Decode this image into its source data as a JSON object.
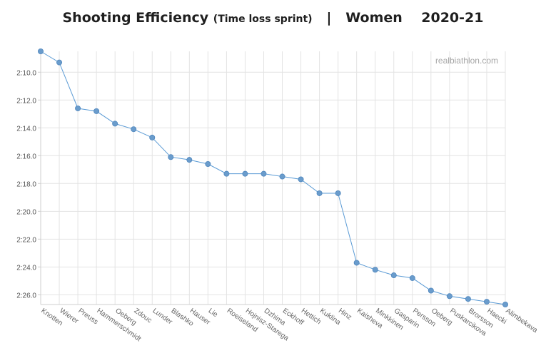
{
  "title_parts": {
    "main": "Shooting Efficiency",
    "sub": "(Time loss sprint)",
    "sep": "|",
    "group": "Women",
    "season": "2020-21"
  },
  "watermark": "realbiathlon.com",
  "chart_data": {
    "type": "line",
    "title": "Shooting Efficiency (Time loss sprint) | Women 2020-21",
    "xlabel": "",
    "ylabel": "",
    "y_unit": "seconds (m:ss.s)",
    "y_inverted": true,
    "ylim": [
      128.5,
      146.7
    ],
    "yticks": [
      130,
      132,
      134,
      136,
      138,
      140,
      142,
      144,
      146
    ],
    "ytick_labels": [
      "2:10.0",
      "2:12.0",
      "2:14.0",
      "2:16.0",
      "2:18.0",
      "2:20.0",
      "2:22.0",
      "2:24.0",
      "2:26.0"
    ],
    "grid": true,
    "line_color": "#5b9bd5",
    "marker_color": "#6a9ccc",
    "categories": [
      "Knotten",
      "Wierer",
      "Preuss",
      "Hammerschmidt",
      "Oeberg",
      "Zdouc",
      "Lunder",
      "Blashko",
      "Hauser",
      "Lie",
      "Roeiseland",
      "Hojnisz-Starega",
      "Dzhima",
      "Eckhoff",
      "Hettich",
      "Kuklina",
      "Hinz",
      "Kaisheva",
      "Minkkinen",
      "Gasparin",
      "Persson",
      "Oeberg",
      "Puskarcikova",
      "Brorsson",
      "Haecki",
      "Alimbekava"
    ],
    "values": [
      128.5,
      129.3,
      132.6,
      132.8,
      133.7,
      134.1,
      134.7,
      136.1,
      136.3,
      136.6,
      137.3,
      137.3,
      137.3,
      137.5,
      137.7,
      138.7,
      138.7,
      143.7,
      144.2,
      144.6,
      144.8,
      145.7,
      146.1,
      146.3,
      146.5,
      146.7
    ]
  }
}
